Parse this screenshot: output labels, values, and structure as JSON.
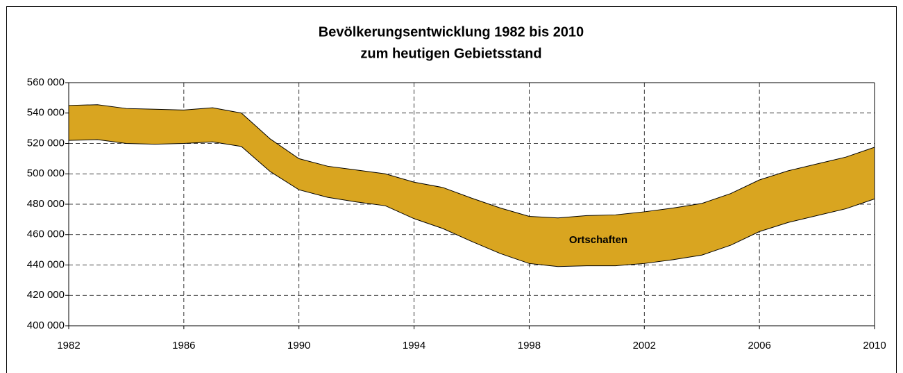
{
  "chart_data": {
    "type": "range_area",
    "title": [
      "Bevölkerungsentwicklung 1982 bis 2010",
      "zum heutigen Gebietsstand"
    ],
    "x": [
      1982,
      1983,
      1984,
      1985,
      1986,
      1987,
      1988,
      1989,
      1990,
      1991,
      1992,
      1993,
      1994,
      1995,
      1996,
      1997,
      1998,
      1999,
      2000,
      2001,
      2002,
      2003,
      2004,
      2005,
      2006,
      2007,
      2008,
      2009,
      2010
    ],
    "series": [
      {
        "name": "Ortschaften",
        "color": "#d9a520",
        "high": [
          545000,
          545500,
          543000,
          542500,
          542000,
          543500,
          540000,
          523000,
          510000,
          505000,
          502500,
          500000,
          494500,
          491000,
          484000,
          477500,
          472000,
          471000,
          472500,
          473000,
          475000,
          477500,
          480500,
          487000,
          496000,
          502000,
          506500,
          511000,
          517500
        ],
        "low": [
          522000,
          522500,
          520000,
          519500,
          520000,
          521000,
          518000,
          501500,
          489500,
          484500,
          481500,
          479000,
          470500,
          464000,
          455500,
          447500,
          441000,
          439000,
          439500,
          439500,
          441000,
          443500,
          446500,
          453000,
          462000,
          468000,
          472500,
          477000,
          483500
        ]
      }
    ],
    "xlim": [
      1982,
      2010
    ],
    "xticks": [
      1982,
      1986,
      1990,
      1994,
      1998,
      2002,
      2006,
      2010
    ],
    "ylim": [
      400000,
      560000
    ],
    "yticks": [
      {
        "value": 400000,
        "label": "400 000"
      },
      {
        "value": 420000,
        "label": "420 000"
      },
      {
        "value": 440000,
        "label": "440 000"
      },
      {
        "value": 460000,
        "label": "460 000"
      },
      {
        "value": 480000,
        "label": "480 000"
      },
      {
        "value": 500000,
        "label": "500 000"
      },
      {
        "value": 520000,
        "label": "520 000"
      },
      {
        "value": 540000,
        "label": "540 000"
      },
      {
        "value": 560000,
        "label": "560 000"
      }
    ],
    "grid": true
  }
}
